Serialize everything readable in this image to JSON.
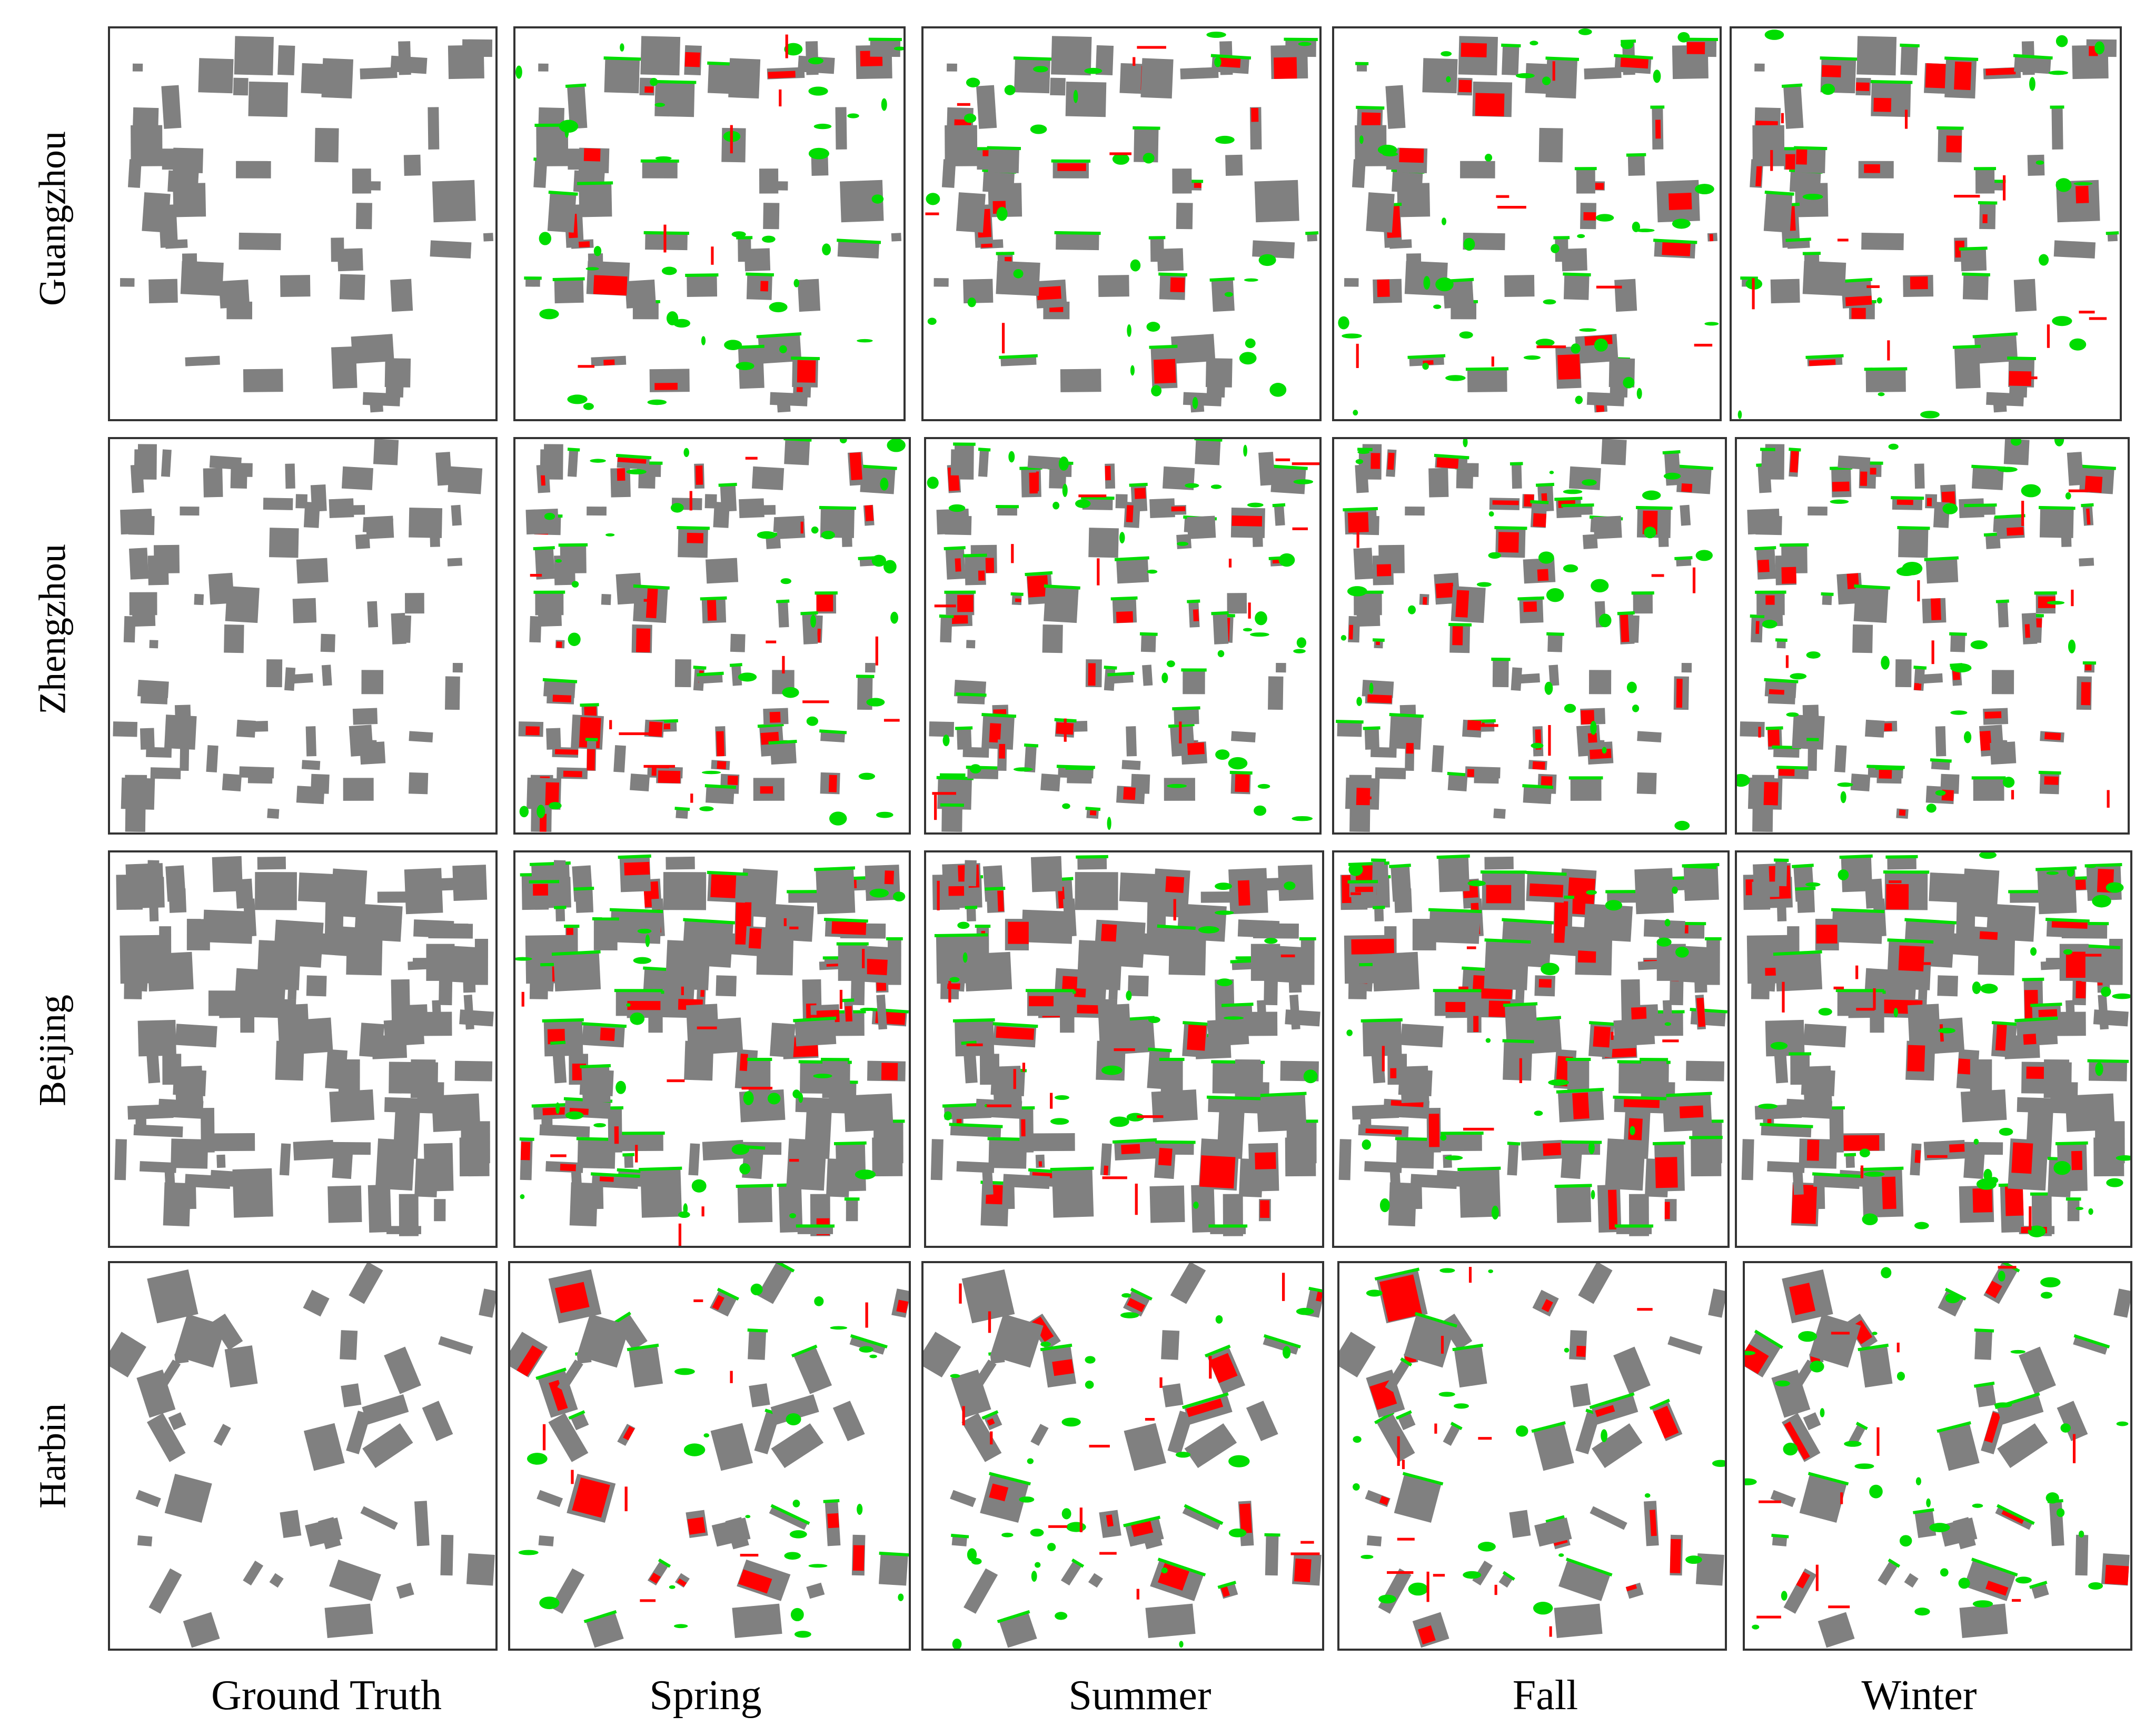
{
  "figure": {
    "rows": [
      "Guangzhou",
      "Zhengzhou",
      "Beijing",
      "Harbin"
    ],
    "columns": [
      "Ground Truth",
      "Spring",
      "Summer",
      "Fall",
      "Winter"
    ]
  },
  "colors": {
    "building": "#808080",
    "missed": "#ff0000",
    "false_positive": "#00dd00",
    "border": "#333333",
    "background": "#ffffff"
  }
}
